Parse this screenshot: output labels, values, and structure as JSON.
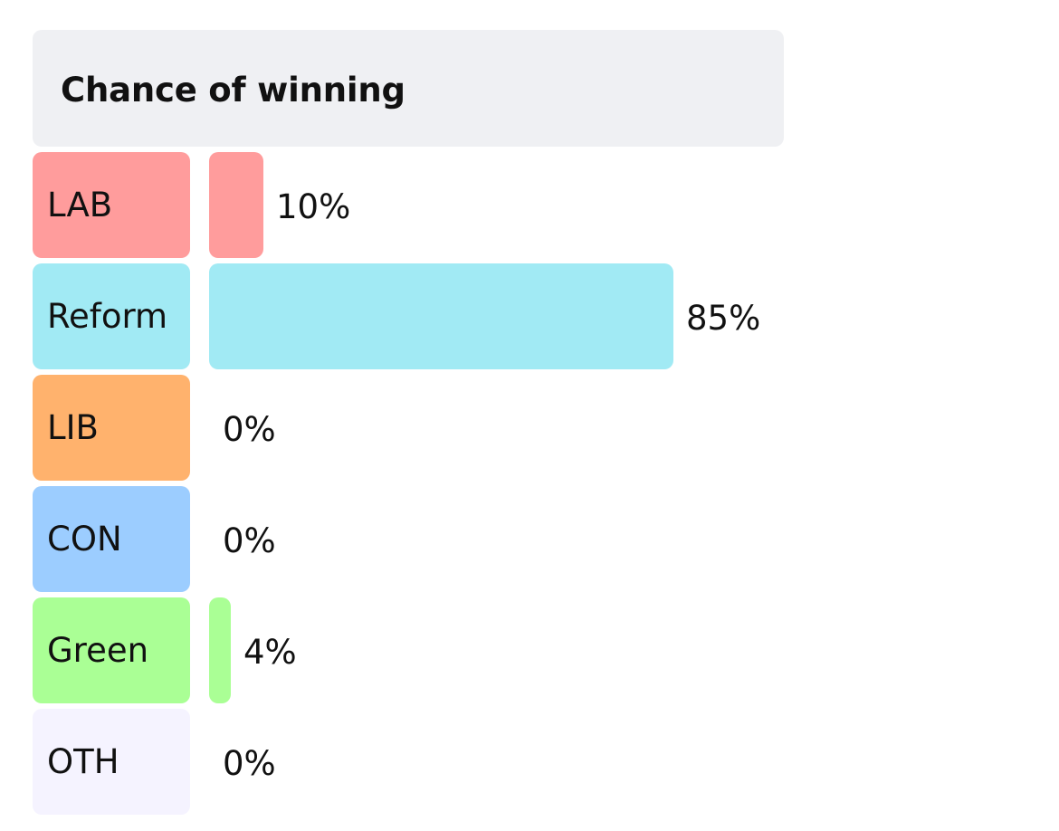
{
  "chart_data": {
    "type": "bar",
    "orientation": "horizontal",
    "title": "Chance of winning",
    "categories": [
      "LAB",
      "Reform",
      "LIB",
      "CON",
      "Green",
      "OTH"
    ],
    "values": [
      10,
      85,
      0,
      0,
      4,
      0
    ],
    "value_labels": [
      "10%",
      "85%",
      "0%",
      "0%",
      "4%",
      "0%"
    ],
    "unit": "%",
    "xlim": [
      0,
      100
    ],
    "grid": false,
    "legend": "none",
    "colors": {
      "LAB": "#ff9c9c",
      "Reform": "#a1eaf4",
      "LIB": "#ffb26d",
      "CON": "#9ccdff",
      "Green": "#aaff95",
      "OTH": "#f5f3ff"
    }
  }
}
